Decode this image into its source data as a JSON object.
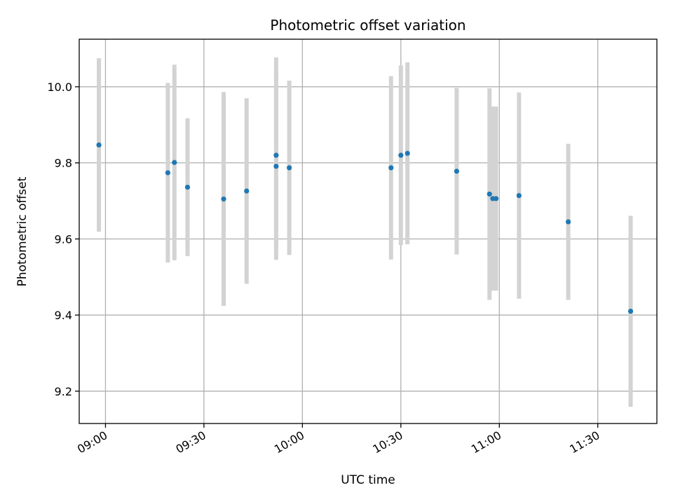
{
  "chart_data": {
    "type": "scatter",
    "title": "Photometric offset variation",
    "xlabel": "UTC time",
    "ylabel": "Photometric offset",
    "xlim": [
      "08:52",
      "11:48"
    ],
    "ylim": [
      9.115,
      10.125
    ],
    "xticks": [
      "09:00",
      "09:30",
      "10:00",
      "10:30",
      "11:00",
      "11:30"
    ],
    "yticks": [
      9.2,
      9.4,
      9.6,
      9.8,
      10.0
    ],
    "ytick_labels": [
      "9.2",
      "9.4",
      "9.6",
      "9.8",
      "10.0"
    ],
    "grid": true,
    "points": [
      {
        "x": "08:58",
        "y": 9.847,
        "err": 0.228
      },
      {
        "x": "09:19",
        "y": 9.774,
        "err": 0.236
      },
      {
        "x": "09:21",
        "y": 9.801,
        "err": 0.257
      },
      {
        "x": "09:25",
        "y": 9.736,
        "err": 0.181
      },
      {
        "x": "09:36",
        "y": 9.705,
        "err": 0.281
      },
      {
        "x": "09:43",
        "y": 9.726,
        "err": 0.244
      },
      {
        "x": "09:52",
        "y": 9.82,
        "err": 0.257
      },
      {
        "x": "09:52",
        "y": 9.791,
        "err": 0.246
      },
      {
        "x": "09:56",
        "y": 9.787,
        "err": 0.229
      },
      {
        "x": "10:27",
        "y": 9.787,
        "err": 0.241
      },
      {
        "x": "10:30",
        "y": 9.82,
        "err": 0.236
      },
      {
        "x": "10:32",
        "y": 9.825,
        "err": 0.239
      },
      {
        "x": "10:47",
        "y": 9.778,
        "err": 0.219
      },
      {
        "x": "10:57",
        "y": 9.718,
        "err": 0.278
      },
      {
        "x": "10:58",
        "y": 9.706,
        "err": 0.242
      },
      {
        "x": "10:59",
        "y": 9.706,
        "err": 0.242
      },
      {
        "x": "11:06",
        "y": 9.714,
        "err": 0.271
      },
      {
        "x": "11:21",
        "y": 9.645,
        "err": 0.205
      },
      {
        "x": "11:40",
        "y": 9.41,
        "err": 0.251
      }
    ],
    "colors": {
      "marker": "#1f77b4",
      "errorbar": "#d3d3d3",
      "grid": "#b0b0b0",
      "axes": "#000000"
    }
  }
}
